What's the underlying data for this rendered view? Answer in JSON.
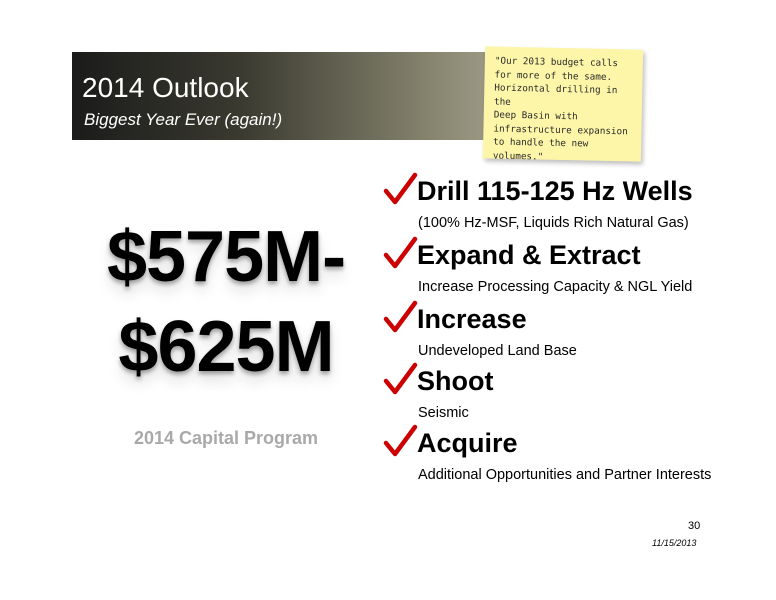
{
  "header": {
    "title": "2014 Outlook",
    "subtitle": "Biggest Year Ever (again!)"
  },
  "note": {
    "lines": [
      "\"Our 2013 budget calls",
      "for more of the same.",
      "Horizontal drilling in the",
      "Deep Basin with",
      "infrastructure expansion",
      "to handle the new",
      "volumes.\""
    ]
  },
  "capital": {
    "amount_line1": "$575M-",
    "amount_line2": "$625M",
    "label": "2014 Capital Program"
  },
  "items": [
    {
      "title": "Drill 115-125 Hz Wells",
      "description": "(100% Hz-MSF, Liquids Rich Natural Gas)"
    },
    {
      "title": "Expand & Extract",
      "description": "Increase Processing Capacity & NGL Yield"
    },
    {
      "title": "Increase",
      "description": "Undeveloped Land Base"
    },
    {
      "title": "Shoot",
      "description": "Seismic"
    },
    {
      "title": "Acquire",
      "description": "Additional Opportunities and Partner Interests"
    }
  ],
  "footer": {
    "page_number": "30",
    "date": "11/15/2013"
  },
  "colors": {
    "check": "#cc0000",
    "note_background": "#fdf6a8",
    "muted_label": "#a9a9a9"
  },
  "icons": {
    "bullet": "checkmark-icon"
  }
}
